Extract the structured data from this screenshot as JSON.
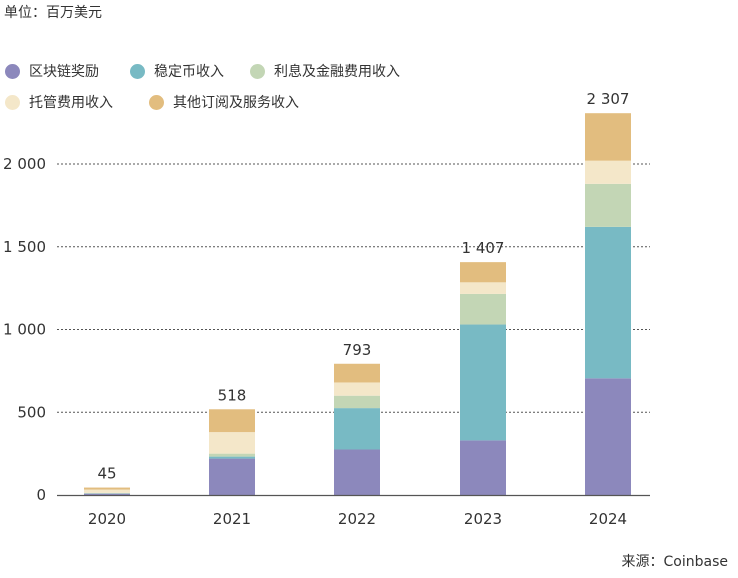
{
  "unit_label": "单位：百万美元",
  "source_label": "来源：Coinbase",
  "colors": {
    "block_rewards": "#8C88BC",
    "stablecoin": "#78BAC4",
    "interest_finance": "#C3D6B5",
    "custody": "#F4E7C9",
    "other_subscriptions": "#E2BD7F",
    "grid": "#555555",
    "axis": "#555555"
  },
  "chart_data": {
    "type": "bar",
    "stacked": true,
    "categories": [
      "2020",
      "2021",
      "2022",
      "2023",
      "2024"
    ],
    "series": [
      {
        "name": "区块链奖励",
        "color_key": "block_rewards",
        "values": [
          8,
          220,
          275,
          330,
          705
        ]
      },
      {
        "name": "稳定币收入",
        "color_key": "stablecoin",
        "values": [
          2,
          12,
          250,
          700,
          915
        ]
      },
      {
        "name": "利息及金融费用收入",
        "color_key": "interest_finance",
        "values": [
          3,
          18,
          75,
          185,
          260
        ]
      },
      {
        "name": "托管费用收入",
        "color_key": "custody",
        "values": [
          20,
          130,
          80,
          70,
          140
        ]
      },
      {
        "name": "其他订阅及服务收入",
        "color_key": "other_subscriptions",
        "values": [
          12,
          138,
          113,
          122,
          287
        ]
      }
    ],
    "totals": [
      "45",
      "518",
      "793",
      "1 407",
      "2 307"
    ],
    "ylim": [
      0,
      2300
    ],
    "yticks": [
      0,
      500,
      1000,
      1500,
      2000
    ],
    "ytick_labels": [
      "0",
      "500",
      "1 000",
      "1 500",
      "2 000"
    ],
    "grid": "horizontal-dashed",
    "legend_position": "top-left"
  }
}
